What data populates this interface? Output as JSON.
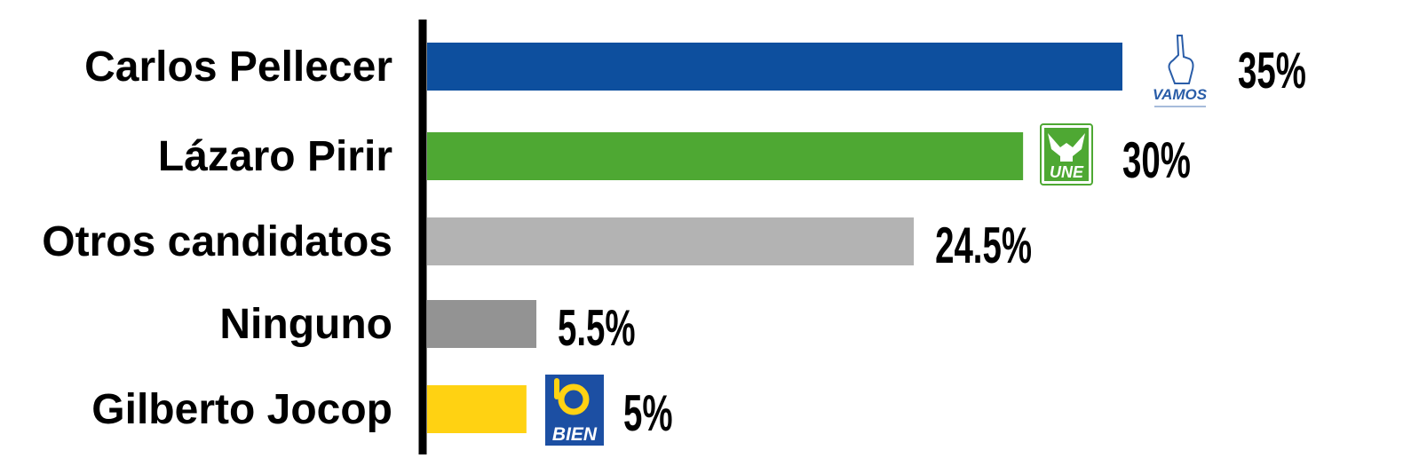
{
  "chart_data": {
    "type": "bar",
    "orientation": "horizontal",
    "categories": [
      "Carlos Pellecer",
      "Lázaro Pirir",
      "Otros candidatos",
      "Ninguno",
      "Gilberto Jocop"
    ],
    "values": [
      35,
      30,
      24.5,
      5.5,
      5
    ],
    "value_labels": [
      "35%",
      "30%",
      "24.5%",
      "5.5%",
      "5%"
    ],
    "bar_colors": [
      "#0d4f9e",
      "#4ea833",
      "#b3b3b3",
      "#939393",
      "#ffd212"
    ],
    "party_logos": [
      {
        "icon": "vamos-logo",
        "text": "VAMOS"
      },
      {
        "icon": "une-logo",
        "text": "UNE"
      },
      null,
      null,
      {
        "icon": "bien-logo",
        "text": "BIEN"
      }
    ],
    "title": "",
    "xlabel": "",
    "ylabel": "",
    "grid": false,
    "legend": "none"
  }
}
